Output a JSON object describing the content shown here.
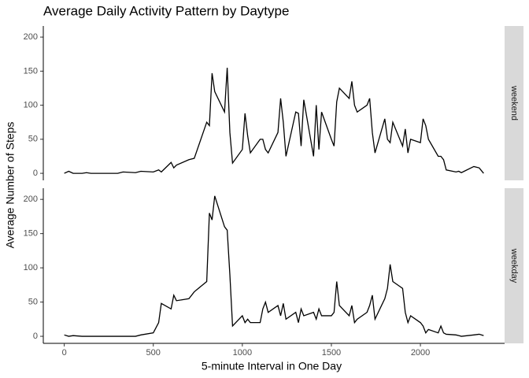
{
  "chart_data": {
    "type": "line",
    "title": "Average Daily Activity Pattern by Daytype",
    "x_label": "5-minute Interval in One Day",
    "y_label": "Average Number of Steps",
    "x": [
      0,
      25,
      50,
      100,
      125,
      150,
      200,
      230,
      300,
      330,
      400,
      430,
      500,
      530,
      545,
      600,
      615,
      630,
      700,
      730,
      800,
      815,
      830,
      845,
      900,
      915,
      930,
      945,
      1000,
      1015,
      1030,
      1045,
      1100,
      1115,
      1130,
      1145,
      1200,
      1215,
      1230,
      1245,
      1300,
      1315,
      1330,
      1345,
      1400,
      1415,
      1430,
      1445,
      1500,
      1515,
      1530,
      1545,
      1600,
      1615,
      1630,
      1645,
      1700,
      1715,
      1730,
      1745,
      1800,
      1815,
      1830,
      1845,
      1900,
      1915,
      1930,
      1945,
      2000,
      2015,
      2030,
      2045,
      2100,
      2115,
      2130,
      2145,
      2200,
      2215,
      2230,
      2300,
      2330,
      2355
    ],
    "series": [
      {
        "name": "weekend",
        "color": "#000000",
        "values": [
          0,
          3,
          0,
          0,
          1,
          0,
          0,
          0,
          0,
          2,
          1,
          3,
          2,
          5,
          2,
          16,
          8,
          12,
          20,
          22,
          75,
          70,
          147,
          120,
          90,
          155,
          60,
          15,
          35,
          88,
          55,
          30,
          50,
          50,
          35,
          30,
          60,
          110,
          75,
          25,
          90,
          88,
          40,
          108,
          25,
          100,
          35,
          90,
          50,
          40,
          105,
          125,
          110,
          135,
          100,
          90,
          100,
          110,
          60,
          30,
          80,
          50,
          45,
          75,
          40,
          65,
          30,
          50,
          45,
          80,
          70,
          50,
          25,
          25,
          20,
          5,
          2,
          3,
          1,
          10,
          8,
          0
        ]
      },
      {
        "name": "weekday",
        "color": "#000000",
        "values": [
          2,
          0,
          1,
          0,
          0,
          0,
          0,
          0,
          0,
          0,
          0,
          2,
          5,
          20,
          48,
          40,
          60,
          52,
          55,
          65,
          80,
          180,
          170,
          205,
          160,
          155,
          90,
          15,
          30,
          20,
          25,
          20,
          20,
          40,
          50,
          35,
          45,
          30,
          48,
          25,
          35,
          20,
          40,
          30,
          35,
          25,
          40,
          30,
          30,
          35,
          80,
          45,
          30,
          45,
          20,
          25,
          35,
          45,
          60,
          25,
          55,
          70,
          105,
          80,
          70,
          35,
          20,
          30,
          20,
          15,
          5,
          10,
          5,
          15,
          5,
          3,
          2,
          1,
          0,
          2,
          3,
          1
        ]
      }
    ],
    "xlim": [
      -117.75,
      2472.75
    ],
    "xticks": [
      0,
      500,
      1000,
      1500,
      2000
    ],
    "ylim": [
      -10.3,
      216.3
    ],
    "yticks": [
      0,
      50,
      100,
      150,
      200
    ]
  }
}
